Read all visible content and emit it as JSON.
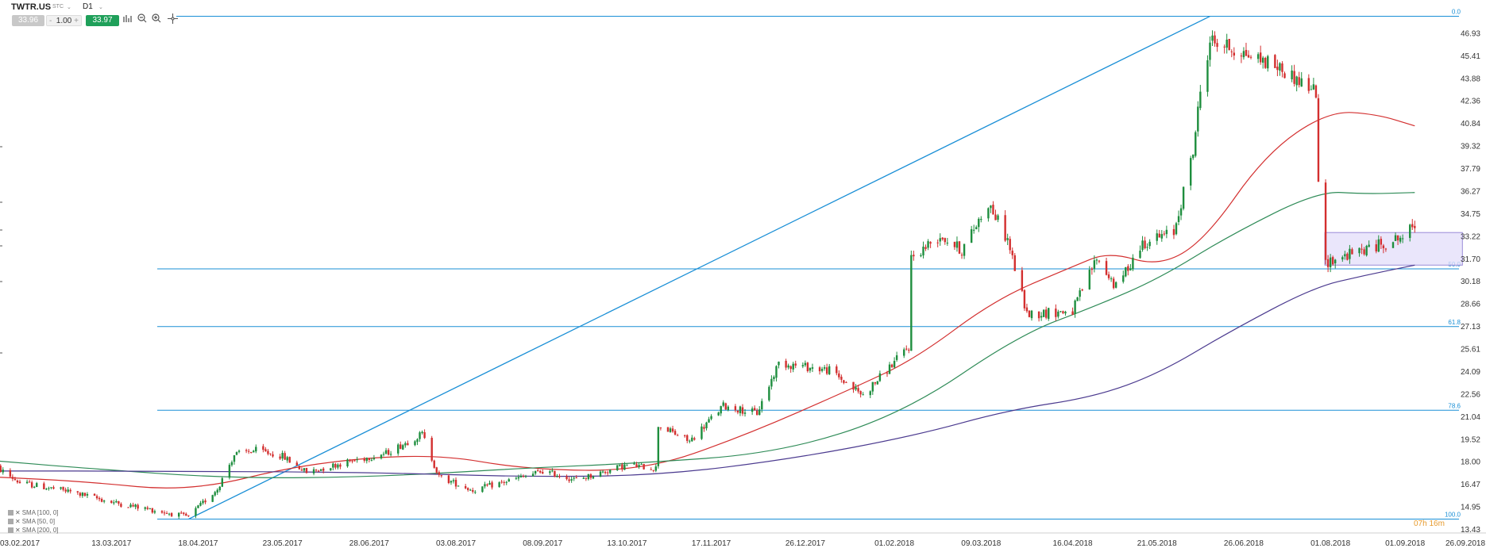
{
  "toolbar": {
    "symbol": "TWTR.US",
    "symbol_sub": "STC",
    "timeframe": "D1",
    "bid": "33.96",
    "quantity": "1.00",
    "ask": "33.97",
    "icons": [
      "bar-chart-icon",
      "zoom-out-icon",
      "zoom-in-icon",
      "crosshair-icon"
    ]
  },
  "legend": {
    "items": [
      "SMA [100, 0]",
      "SMA [50, 0]",
      "SMA [200, 0]"
    ]
  },
  "timer_label": "07h 16m",
  "chart_data": {
    "type": "candlestick",
    "symbol": "TWTR.US",
    "timeframe": "D1",
    "ylim": [
      13.43,
      48.45
    ],
    "y_ticks": [
      "46.93",
      "45.41",
      "43.88",
      "42.36",
      "40.84",
      "39.32",
      "37.79",
      "36.27",
      "34.75",
      "33.22",
      "31.70",
      "30.18",
      "28.66",
      "27.13",
      "25.61",
      "24.09",
      "22.56",
      "21.04",
      "19.52",
      "18.00",
      "16.47",
      "14.95",
      "13.43"
    ],
    "x_ticks": [
      "03.02.2017",
      "13.03.2017",
      "18.04.2017",
      "23.05.2017",
      "28.06.2017",
      "03.08.2017",
      "08.09.2017",
      "13.10.2017",
      "17.11.2017",
      "26.12.2017",
      "01.02.2018",
      "09.03.2018",
      "16.04.2018",
      "21.05.2018",
      "26.06.2018",
      "01.08.2018",
      "01.09.2018",
      "26.09.2018"
    ],
    "fibonacci": {
      "levels": [
        {
          "label": "0.0",
          "price": 48.1
        },
        {
          "label": "50.0",
          "price": 31.05
        },
        {
          "label": "61.8",
          "price": 27.15
        },
        {
          "label": "78.6",
          "price": 21.5
        },
        {
          "label": "100.0",
          "price": 14.15
        }
      ]
    },
    "trendline": {
      "from": {
        "date": "2017-04-14",
        "price": 14.15
      },
      "to": {
        "date": "2018-06-12",
        "price": 48.1
      }
    },
    "consolidation_box": {
      "from": "2018-07-31",
      "to": "2018-09-05",
      "price_low": 31.3,
      "price_high": 33.5
    },
    "anchors": [
      {
        "date": "2017-01-23",
        "price": 17.8
      },
      {
        "date": "2017-02-03",
        "price": 16.6
      },
      {
        "date": "2017-02-24",
        "price": 16.0
      },
      {
        "date": "2017-03-13",
        "price": 15.3
      },
      {
        "date": "2017-04-14",
        "price": 14.3
      },
      {
        "date": "2017-04-26",
        "price": 16.2
      },
      {
        "date": "2017-05-03",
        "price": 18.5
      },
      {
        "date": "2017-05-12",
        "price": 18.8
      },
      {
        "date": "2017-05-23",
        "price": 18.4
      },
      {
        "date": "2017-06-02",
        "price": 17.3
      },
      {
        "date": "2017-06-16",
        "price": 17.9
      },
      {
        "date": "2017-07-05",
        "price": 18.6
      },
      {
        "date": "2017-07-20",
        "price": 19.9
      },
      {
        "date": "2017-07-27",
        "price": 17.0
      },
      {
        "date": "2017-08-10",
        "price": 16.1
      },
      {
        "date": "2017-08-31",
        "price": 17.0
      },
      {
        "date": "2017-09-08",
        "price": 17.4
      },
      {
        "date": "2017-09-22",
        "price": 16.8
      },
      {
        "date": "2017-10-13",
        "price": 17.8
      },
      {
        "date": "2017-10-25",
        "price": 17.6
      },
      {
        "date": "2017-10-26",
        "price": 20.5
      },
      {
        "date": "2017-11-08",
        "price": 19.4
      },
      {
        "date": "2017-11-22",
        "price": 21.8
      },
      {
        "date": "2017-12-06",
        "price": 21.3
      },
      {
        "date": "2017-12-15",
        "price": 24.7
      },
      {
        "date": "2018-01-05",
        "price": 24.2
      },
      {
        "date": "2018-01-19",
        "price": 22.5
      },
      {
        "date": "2018-02-07",
        "price": 25.8
      },
      {
        "date": "2018-02-08",
        "price": 31.8
      },
      {
        "date": "2018-02-20",
        "price": 33.3
      },
      {
        "date": "2018-03-01",
        "price": 32.3
      },
      {
        "date": "2018-03-12",
        "price": 35.5
      },
      {
        "date": "2018-03-20",
        "price": 33.0
      },
      {
        "date": "2018-03-28",
        "price": 28.0
      },
      {
        "date": "2018-04-16",
        "price": 28.2
      },
      {
        "date": "2018-04-26",
        "price": 31.8
      },
      {
        "date": "2018-05-04",
        "price": 29.8
      },
      {
        "date": "2018-05-15",
        "price": 32.8
      },
      {
        "date": "2018-05-28",
        "price": 33.5
      },
      {
        "date": "2018-06-05",
        "price": 39.0
      },
      {
        "date": "2018-06-08",
        "price": 43.0
      },
      {
        "date": "2018-06-12",
        "price": 46.5
      },
      {
        "date": "2018-07-09",
        "price": 44.8
      },
      {
        "date": "2018-07-26",
        "price": 43.0
      },
      {
        "date": "2018-07-27",
        "price": 36.5
      },
      {
        "date": "2018-07-30",
        "price": 31.5
      },
      {
        "date": "2018-08-20",
        "price": 32.6
      },
      {
        "date": "2018-08-31",
        "price": 33.2
      },
      {
        "date": "2018-09-05",
        "price": 33.97
      }
    ],
    "indicators": [
      {
        "name": "SMA [50, 0]",
        "color": "#d32f2f",
        "points": [
          {
            "date": "2017-01-23",
            "price": 17.0
          },
          {
            "date": "2017-03-01",
            "price": 16.7
          },
          {
            "date": "2017-04-15",
            "price": 16.0
          },
          {
            "date": "2017-06-01",
            "price": 17.9
          },
          {
            "date": "2017-07-24",
            "price": 18.6
          },
          {
            "date": "2017-09-01",
            "price": 17.5
          },
          {
            "date": "2017-10-20",
            "price": 17.4
          },
          {
            "date": "2017-12-01",
            "price": 19.8
          },
          {
            "date": "2018-01-15",
            "price": 23.0
          },
          {
            "date": "2018-02-10",
            "price": 25.0
          },
          {
            "date": "2018-03-15",
            "price": 29.0
          },
          {
            "date": "2018-04-16",
            "price": 31.2
          },
          {
            "date": "2018-05-01",
            "price": 32.2
          },
          {
            "date": "2018-05-22",
            "price": 31.2
          },
          {
            "date": "2018-06-10",
            "price": 33.0
          },
          {
            "date": "2018-07-05",
            "price": 38.8
          },
          {
            "date": "2018-07-31",
            "price": 41.7
          },
          {
            "date": "2018-08-20",
            "price": 41.5
          },
          {
            "date": "2018-09-05",
            "price": 40.7
          }
        ]
      },
      {
        "name": "SMA [100, 0]",
        "color": "#2e8b57",
        "points": [
          {
            "date": "2017-01-23",
            "price": 18.1
          },
          {
            "date": "2017-03-01",
            "price": 17.6
          },
          {
            "date": "2017-05-01",
            "price": 16.9
          },
          {
            "date": "2017-07-01",
            "price": 17.0
          },
          {
            "date": "2017-09-01",
            "price": 17.6
          },
          {
            "date": "2017-10-15",
            "price": 17.9
          },
          {
            "date": "2017-12-15",
            "price": 18.6
          },
          {
            "date": "2018-02-05",
            "price": 21.3
          },
          {
            "date": "2018-03-25",
            "price": 26.6
          },
          {
            "date": "2018-04-25",
            "price": 28.5
          },
          {
            "date": "2018-05-22",
            "price": 30.4
          },
          {
            "date": "2018-06-20",
            "price": 33.3
          },
          {
            "date": "2018-07-27",
            "price": 36.3
          },
          {
            "date": "2018-08-15",
            "price": 36.1
          },
          {
            "date": "2018-09-05",
            "price": 36.2
          }
        ]
      },
      {
        "name": "SMA [200, 0]",
        "color": "#4b3a8f",
        "points": [
          {
            "date": "2017-01-23",
            "price": 17.4
          },
          {
            "date": "2017-04-01",
            "price": 17.4
          },
          {
            "date": "2017-07-01",
            "price": 17.3
          },
          {
            "date": "2017-09-01",
            "price": 17.0
          },
          {
            "date": "2017-10-26",
            "price": 17.1
          },
          {
            "date": "2017-12-20",
            "price": 18.2
          },
          {
            "date": "2018-02-10",
            "price": 19.8
          },
          {
            "date": "2018-03-20",
            "price": 21.5
          },
          {
            "date": "2018-04-25",
            "price": 22.4
          },
          {
            "date": "2018-05-22",
            "price": 24.0
          },
          {
            "date": "2018-06-20",
            "price": 26.8
          },
          {
            "date": "2018-07-25",
            "price": 29.8
          },
          {
            "date": "2018-08-15",
            "price": 30.6
          },
          {
            "date": "2018-09-05",
            "price": 31.3
          }
        ]
      }
    ],
    "colors": {
      "up": "#1e8e3e",
      "down": "#d32f2f",
      "fib_line": "#1a8fd6",
      "fib_label": "#1a8fd6",
      "trendline": "#1a8fd6",
      "box_fill": "#e3defa",
      "box_stroke": "#9a8bd8",
      "timer": "#e69a2e"
    }
  }
}
